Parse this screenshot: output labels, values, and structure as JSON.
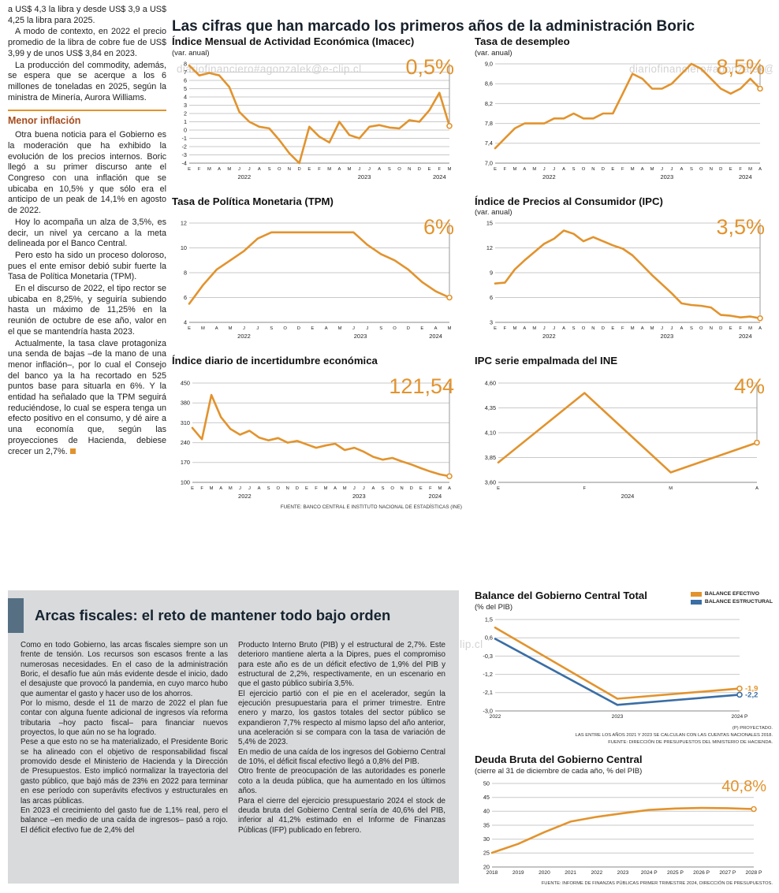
{
  "watermark": "diariofinanciero#agonzalek@e-clip.cl",
  "colors": {
    "accent": "#E2932D",
    "blue": "#3A6EA5",
    "heading_brown": "#A64C1E",
    "panel_bg": "#D8DADC",
    "panel_bar": "#566F83"
  },
  "main_title": "Las cifras que han marcado los primeros años de la administración Boric",
  "left_column": {
    "heading": "Menor inflación",
    "paragraphs": [
      "a US$ 4,3 la libra y desde US$ 3,9 a US$ 4,25 la libra para 2025.",
      "A modo de contexto, en 2022 el precio promedio de la libra de cobre fue de US$ 3,99 y de unos US$ 3,84 en 2023.",
      "La producción del commodity, además, se espera que se acerque a los 6 millones de toneladas en 2025, según la ministra de Minería, Aurora Williams.",
      "Otra buena noticia para el Gobierno es la moderación que ha exhibido la evolución de los precios internos. Boric llegó a su primer discurso ante el Congreso con una inflación que se ubicaba en 10,5% y que sólo era el anticipo de un peak de 14,1% en agosto de 2022.",
      "Hoy lo acompaña un alza de 3,5%, es decir, un nivel ya cercano a la meta delineada por el Banco Central.",
      "Pero esto ha sido un proceso doloroso, pues el ente emisor debió subir fuerte la Tasa de Política Monetaria (TPM).",
      "En el discurso de 2022, el tipo rector se ubicaba en 8,25%, y seguiría subiendo hasta un máximo de 11,25% en la reunión de octubre de ese año, valor en el que se mantendría hasta 2023.",
      "Actualmente, la tasa clave protagoniza una senda de bajas –de la mano de una menor inflación–, por lo cual el Consejo del banco ya la ha recortado en 525 puntos base para situarla en 6%. Y la entidad ha señalado que la TPM seguirá reduciéndose, lo cual se espera tenga un efecto positivo en el consumo, y dé aire a una economía que, según las proyecciones de Hacienda, debiese crecer un 2,7%."
    ]
  },
  "fiscal_panel": {
    "title": "Arcas fiscales: el reto de mantener todo bajo orden",
    "col1": [
      "Como en todo Gobierno, las arcas fiscales siempre son un frente de tensión. Los recursos son escasos frente a las numerosas necesidades. En el caso de la administración Boric, el desafío fue aún más evidente desde el inicio, dado el desajuste que provocó la pandemia, en cuyo marco hubo que aumentar el gasto y hacer uso de los ahorros.",
      "Por lo mismo, desde el 11 de marzo de 2022 el plan fue contar con alguna fuente adicional de ingresos vía reforma tributaria –hoy pacto fiscal– para financiar nuevos proyectos, lo que aún no se ha logrado.",
      "Pese a que esto no se ha materializado, el Presidente Boric se ha alineado con el objetivo de responsabilidad fiscal promovido desde el Ministerio de Hacienda y la Dirección de Presupuestos. Esto implicó normalizar la trayectoria del gasto público, que bajó más de 23% en 2022 para terminar en ese período con superávits efectivos y estructurales en las arcas públicas.",
      "En 2023 el crecimiento del gasto fue de 1,1% real, pero el balance –en medio de una caída de ingresos– pasó a rojo. El déficit efectivo fue de 2,4% del"
    ],
    "col2": [
      "Producto Interno Bruto (PIB) y el estructural de 2,7%. Este deterioro mantiene alerta a la Dipres, pues el compromiso para este año es de un déficit efectivo de 1,9% del PIB y estructural de 2,2%, respectivamente, en un escenario en que el gasto público subiría 3,5%.",
      "El ejercicio partió con el pie en el acelerador, según la ejecución presupuestaria para el primer trimestre. Entre enero y marzo, los gastos totales del sector público se expandieron 7,7% respecto al mismo lapso del año anterior, una aceleración si se compara con la tasa de variación de 5,4% de 2023.",
      "En medio de una caída de los ingresos del Gobierno Central de 10%, el déficit fiscal efectivo llegó a 0,8% del PIB.",
      "Otro frente de preocupación de las autoridades es ponerle coto a la deuda pública, que ha aumentado en los últimos años.",
      "Para el cierre del ejercicio presupuestario 2024 el stock de deuda bruta del Gobierno Central sería de 40,6% del PIB, inferior al 41,2% estimado en el Informe de Finanzas Públicas (IFP) publicado en febrero."
    ]
  },
  "chart_data": [
    {
      "id": "imacec",
      "type": "line",
      "title": "Índice Mensual de Actividad Económica (Imacec)",
      "subtitle": "(var. anual)",
      "highlight": "0,5%",
      "ylim": [
        -4,
        8
      ],
      "yticks": [
        {
          "v": 8,
          "label": "8"
        },
        {
          "v": 7,
          "label": "7"
        },
        {
          "v": 6,
          "label": "6"
        },
        {
          "v": 5,
          "label": "5"
        },
        {
          "v": 4,
          "label": "4"
        },
        {
          "v": 3,
          "label": "3"
        },
        {
          "v": 2,
          "label": "2"
        },
        {
          "v": 1,
          "label": "1"
        },
        {
          "v": 0,
          "label": "0"
        },
        {
          "v": -1,
          "label": "-1"
        },
        {
          "v": -2,
          "label": "-2"
        },
        {
          "v": -3,
          "label": "-3"
        },
        {
          "v": -4,
          "label": "-4"
        }
      ],
      "x_labels": [
        "E",
        "F",
        "M",
        "A",
        "M",
        "J",
        "J",
        "A",
        "S",
        "O",
        "N",
        "D",
        "E",
        "F",
        "M",
        "A",
        "M",
        "J",
        "J",
        "A",
        "S",
        "O",
        "N",
        "D",
        "E",
        "F",
        "M"
      ],
      "year_groups": [
        {
          "label": "2022",
          "start": 0,
          "end": 11
        },
        {
          "label": "2023",
          "start": 12,
          "end": 23
        },
        {
          "label": "2024",
          "start": 24,
          "end": 26
        }
      ],
      "values": [
        7.8,
        6.6,
        6.9,
        6.6,
        5.2,
        2.2,
        1.0,
        0.4,
        0.2,
        -1.2,
        -2.8,
        -4.0,
        0.4,
        -0.8,
        -1.5,
        1.0,
        -0.6,
        -1.0,
        0.4,
        0.6,
        0.3,
        0.2,
        1.2,
        1.0,
        2.4,
        4.5,
        0.5
      ],
      "marker_line": true,
      "margins": {
        "l": 22,
        "r": 16,
        "t": 6,
        "b": 26
      }
    },
    {
      "id": "desempleo",
      "type": "line",
      "title": "Tasa de desempleo",
      "subtitle": "(var. anual)",
      "highlight": "8,5%",
      "ylim": [
        7.0,
        9.0
      ],
      "yticks": [
        {
          "v": 9.0,
          "label": "9,0"
        },
        {
          "v": 8.6,
          "label": "8,6"
        },
        {
          "v": 8.2,
          "label": "8,2"
        },
        {
          "v": 7.8,
          "label": "7,8"
        },
        {
          "v": 7.4,
          "label": "7,4"
        },
        {
          "v": 7.0,
          "label": "7,0"
        }
      ],
      "x_labels": [
        "E",
        "F",
        "M",
        "A",
        "M",
        "J",
        "J",
        "A",
        "S",
        "O",
        "N",
        "D",
        "E",
        "F",
        "M",
        "A",
        "M",
        "J",
        "J",
        "A",
        "S",
        "O",
        "N",
        "D",
        "E",
        "F",
        "M",
        "A"
      ],
      "year_groups": [
        {
          "label": "2022",
          "start": 0,
          "end": 11
        },
        {
          "label": "2023",
          "start": 12,
          "end": 23
        },
        {
          "label": "2024",
          "start": 24,
          "end": 27
        }
      ],
      "values": [
        7.3,
        7.5,
        7.7,
        7.8,
        7.8,
        7.8,
        7.9,
        7.9,
        8.0,
        7.9,
        7.9,
        8.0,
        8.0,
        8.4,
        8.8,
        8.7,
        8.5,
        8.5,
        8.6,
        8.8,
        9.0,
        8.9,
        8.7,
        8.5,
        8.4,
        8.5,
        8.7,
        8.5
      ],
      "marker_line": true,
      "margins": {
        "l": 26,
        "r": 16,
        "t": 6,
        "b": 26
      }
    },
    {
      "id": "tpm",
      "type": "line",
      "title": "Tasa de Política Monetaria (TPM)",
      "subtitle": "",
      "highlight": "6%",
      "ylim": [
        4,
        12
      ],
      "yticks": [
        {
          "v": 12,
          "label": "12"
        },
        {
          "v": 10,
          "label": "10"
        },
        {
          "v": 8,
          "label": "8"
        },
        {
          "v": 6,
          "label": "6"
        },
        {
          "v": 4,
          "label": "4"
        }
      ],
      "x_labels": [
        "E",
        "M",
        "A",
        "M",
        "J",
        "J",
        "S",
        "O",
        "D",
        "E",
        "A",
        "M",
        "J",
        "J",
        "S",
        "O",
        "D",
        "E",
        "A",
        "M"
      ],
      "year_groups": [
        {
          "label": "2022",
          "start": 0,
          "end": 8
        },
        {
          "label": "2023",
          "start": 9,
          "end": 16
        },
        {
          "label": "2024",
          "start": 17,
          "end": 19
        }
      ],
      "values": [
        5.5,
        7.0,
        8.25,
        9.0,
        9.75,
        10.75,
        11.25,
        11.25,
        11.25,
        11.25,
        11.25,
        11.25,
        11.25,
        10.25,
        9.5,
        9.0,
        8.25,
        7.25,
        6.5,
        6.0
      ],
      "marker_line": true,
      "margins": {
        "l": 22,
        "r": 16,
        "t": 6,
        "b": 26
      }
    },
    {
      "id": "ipc",
      "type": "line",
      "title": "Índice de Precios al Consumidor (IPC)",
      "subtitle": "(var. anual)",
      "highlight": "3,5%",
      "ylim": [
        3,
        15
      ],
      "yticks": [
        {
          "v": 15,
          "label": "15"
        },
        {
          "v": 12,
          "label": "12"
        },
        {
          "v": 9,
          "label": "9"
        },
        {
          "v": 6,
          "label": "6"
        },
        {
          "v": 3,
          "label": "3"
        }
      ],
      "x_labels": [
        "E",
        "F",
        "M",
        "A",
        "M",
        "J",
        "J",
        "A",
        "S",
        "O",
        "N",
        "D",
        "E",
        "F",
        "M",
        "A",
        "M",
        "J",
        "J",
        "A",
        "S",
        "O",
        "N",
        "D",
        "E",
        "F",
        "M",
        "A"
      ],
      "year_groups": [
        {
          "label": "2022",
          "start": 0,
          "end": 11
        },
        {
          "label": "2023",
          "start": 12,
          "end": 23
        },
        {
          "label": "2024",
          "start": 24,
          "end": 27
        }
      ],
      "values": [
        7.7,
        7.8,
        9.4,
        10.5,
        11.5,
        12.5,
        13.1,
        14.1,
        13.7,
        12.8,
        13.3,
        12.8,
        12.3,
        11.9,
        11.1,
        9.9,
        8.7,
        7.6,
        6.5,
        5.3,
        5.1,
        5.0,
        4.8,
        3.9,
        3.8,
        3.6,
        3.7,
        3.5
      ],
      "marker_line": true,
      "margins": {
        "l": 26,
        "r": 16,
        "t": 6,
        "b": 26
      }
    },
    {
      "id": "incertidumbre",
      "type": "line",
      "title": "Índice diario de incertidumbre económica",
      "subtitle": "",
      "highlight": "121,54",
      "ylim": [
        100,
        450
      ],
      "yticks": [
        {
          "v": 450,
          "label": "450"
        },
        {
          "v": 380,
          "label": "380"
        },
        {
          "v": 310,
          "label": "310"
        },
        {
          "v": 240,
          "label": "240"
        },
        {
          "v": 170,
          "label": "170"
        },
        {
          "v": 100,
          "label": "100"
        }
      ],
      "x_labels": [
        "E",
        "F",
        "M",
        "A",
        "M",
        "J",
        "J",
        "A",
        "S",
        "O",
        "N",
        "D",
        "E",
        "F",
        "M",
        "A",
        "M",
        "J",
        "J",
        "A",
        "S",
        "O",
        "N",
        "D",
        "E",
        "F",
        "M",
        "A"
      ],
      "year_groups": [
        {
          "label": "2022",
          "start": 0,
          "end": 11
        },
        {
          "label": "2023",
          "start": 12,
          "end": 23
        },
        {
          "label": "2024",
          "start": 24,
          "end": 27
        }
      ],
      "values": [
        292,
        252,
        408,
        330,
        288,
        268,
        282,
        258,
        248,
        256,
        240,
        246,
        234,
        222,
        230,
        236,
        214,
        222,
        208,
        190,
        180,
        186,
        174,
        163,
        150,
        138,
        128,
        121.54
      ],
      "marker_line": true,
      "source": "FUENTE: BANCO CENTRAL E INSTITUTO NACIONAL DE ESTADÍSTICAS (INE)",
      "margins": {
        "l": 26,
        "r": 16,
        "t": 6,
        "b": 26
      }
    },
    {
      "id": "ipc_ine",
      "type": "line",
      "title": "IPC serie empalmada del INE",
      "subtitle": "",
      "highlight": "4%",
      "ylim": [
        3.6,
        4.6
      ],
      "yticks": [
        {
          "v": 4.6,
          "label": "4,60"
        },
        {
          "v": 4.35,
          "label": "4,35"
        },
        {
          "v": 4.1,
          "label": "4,10"
        },
        {
          "v": 3.85,
          "label": "3,85"
        },
        {
          "v": 3.6,
          "label": "3,60"
        }
      ],
      "x_labels": [
        "E",
        "F",
        "M",
        "A"
      ],
      "year_groups": [
        {
          "label": "2024",
          "start": 0,
          "end": 3
        }
      ],
      "values": [
        3.8,
        4.5,
        3.7,
        4.0
      ],
      "marker_line": true,
      "margins": {
        "l": 30,
        "r": 20,
        "t": 6,
        "b": 26
      }
    },
    {
      "id": "balance",
      "type": "line",
      "title": "Balance del Gobierno Central Total",
      "subtitle": "(% del PIB)",
      "ylim": [
        -3.0,
        1.5
      ],
      "yticks": [
        {
          "v": 1.5,
          "label": "1,5"
        },
        {
          "v": 0.6,
          "label": "0,6"
        },
        {
          "v": -0.3,
          "label": "-0,3"
        },
        {
          "v": -1.2,
          "label": "-1,2"
        },
        {
          "v": -2.1,
          "label": "-2,1"
        },
        {
          "v": -3.0,
          "label": "-3,0"
        }
      ],
      "x_labels": [
        "2022",
        "2023",
        "2024 P"
      ],
      "x_style": "xtick-lg",
      "series": [
        {
          "name": "BALANCE EFECTIVO",
          "color": "#E2932D",
          "values": [
            1.1,
            -2.4,
            -1.9
          ],
          "end_label": "-1,9"
        },
        {
          "name": "BALANCE ESTRUCTURAL",
          "color": "#3A6EA5",
          "values": [
            0.55,
            -2.7,
            -2.2
          ],
          "end_label": "-2,2"
        }
      ],
      "footnotes": [
        "(P) PROYECTADO.",
        "LAS ENTRE LOS AÑOS 2021 Y 2023 SE CALCULAN CON LAS CUENTAS NACIONALES 2018.",
        "FUENTE: DIRECCIÓN DE PRESUPUESTOS DEL MINISTERIO DE HACIENDA."
      ],
      "margins": {
        "l": 26,
        "r": 36,
        "t": 8,
        "b": 16
      }
    },
    {
      "id": "deuda",
      "type": "line",
      "title": "Deuda Bruta del Gobierno Central",
      "subtitle": "(cierre al 31 de diciembre de cada año, % del PIB)",
      "highlight": "40,8%",
      "ylim": [
        20,
        50
      ],
      "yticks": [
        {
          "v": 50,
          "label": "50"
        },
        {
          "v": 45,
          "label": "45"
        },
        {
          "v": 40,
          "label": "40"
        },
        {
          "v": 35,
          "label": "35"
        },
        {
          "v": 30,
          "label": "30"
        },
        {
          "v": 25,
          "label": "25"
        },
        {
          "v": 20,
          "label": "20"
        }
      ],
      "x_labels": [
        "2018",
        "2019",
        "2020",
        "2021",
        "2022",
        "2023",
        "2024 P",
        "2025 P",
        "2026 P",
        "2027 P",
        "2028 P"
      ],
      "x_style": "xtick-lg",
      "values": [
        25.1,
        28.3,
        32.5,
        36.3,
        38.0,
        39.3,
        40.5,
        41.0,
        41.2,
        41.1,
        40.8
      ],
      "end_circle": true,
      "source": "FUENTE: INFORME DE FINANZAS PÚBLICAS PRIMER TRIMESTRE 2024, DIRECCIÓN DE PRESUPUESTOS.",
      "margins": {
        "l": 22,
        "r": 18,
        "t": 8,
        "b": 16
      }
    }
  ]
}
